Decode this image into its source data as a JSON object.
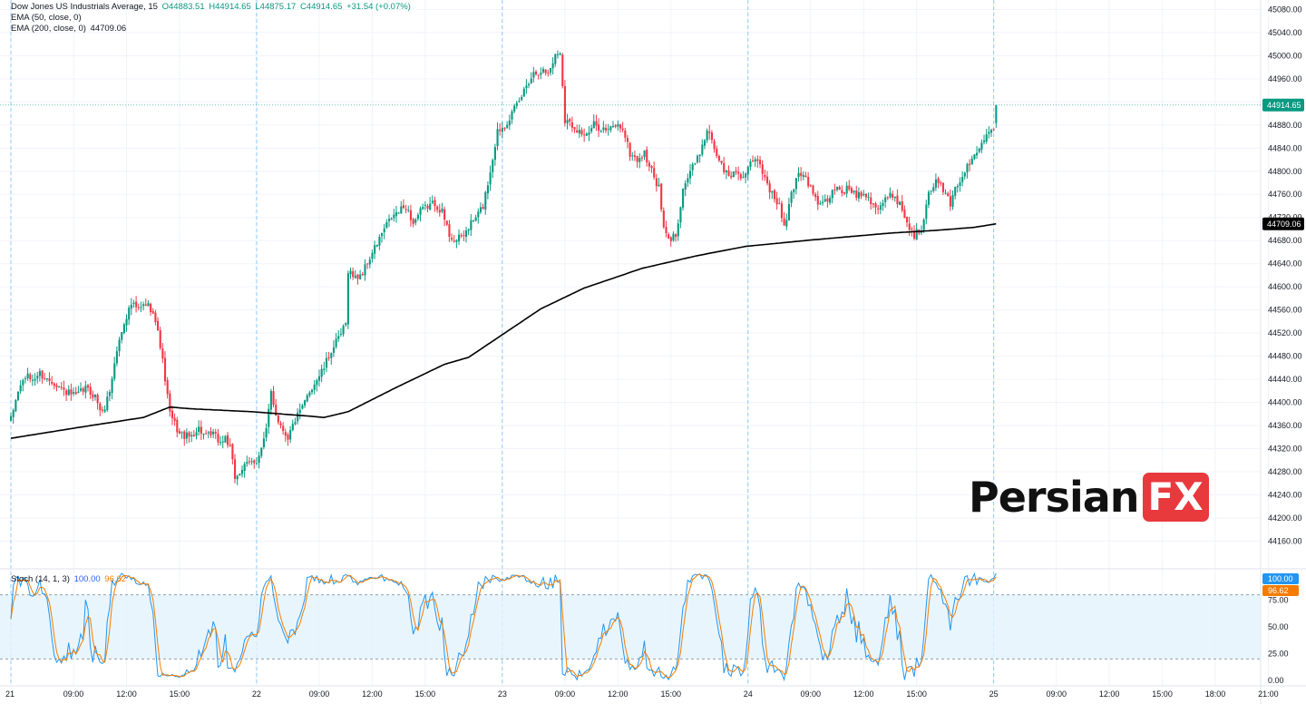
{
  "legend": {
    "main_title": "Dow Jones US Industrials Average, 15",
    "open": "O44883.51",
    "high": "H44914.65",
    "low": "L44875.17",
    "close": "C44914.65",
    "change": "+31.54 (+0.07%)",
    "ema50_label": "EMA (50, close, 0)",
    "ema50_value": "",
    "ema200_label": "EMA (200, close, 0)",
    "ema200_value": "44709.06",
    "stoch_label": "Stoch (14, 1, 3)",
    "stoch_k_value": "100.00",
    "stoch_d_value": "96.62"
  },
  "brand": {
    "text": "Persian",
    "box": "FX"
  },
  "colors": {
    "up": "#089981",
    "down": "#f23645",
    "ema200": "#000000",
    "stoch_k": "#2196f3",
    "stoch_d": "#f57c00",
    "band_fill": "#e3f2fd",
    "price_badge": "#089981",
    "ema_badge": "#000000"
  },
  "chart_data": [
    {
      "type": "candlestick",
      "title": "Dow Jones US Industrials Average, 15",
      "ylim": [
        44120,
        45090
      ],
      "y_ticks": [
        44160,
        44200,
        44240,
        44280,
        44320,
        44360,
        44400,
        44440,
        44480,
        44520,
        44560,
        44600,
        44640,
        44680,
        44720,
        44760,
        44800,
        44840,
        44880,
        44920,
        44960,
        45000,
        45040,
        45080
      ],
      "y_tick_labels": [
        "44160.00",
        "44200.00",
        "44240.00",
        "44280.00",
        "44320.00",
        "44360.00",
        "44400.00",
        "44440.00",
        "44480.00",
        "44520.00",
        "44560.00",
        "44600.00",
        "44640.00",
        "44680.00",
        "44720.00",
        "44760.00",
        "44800.00",
        "44840.00",
        "44880.00",
        "44920.00",
        "44960.00",
        "45000.00",
        "45040.00",
        "45080.00"
      ],
      "x_tick_labels": [
        "21",
        "09:00",
        "12:00",
        "15:00",
        "22",
        "09:00",
        "12:00",
        "15:00",
        "23",
        "09:00",
        "12:00",
        "15:00",
        "24",
        "09:00",
        "12:00",
        "15:00",
        "25",
        "09:00",
        "12:00",
        "15:00",
        "18:00",
        "21:00"
      ],
      "x_tick_slots": [
        0,
        26,
        48,
        70,
        102,
        128,
        150,
        172,
        204,
        230,
        252,
        274,
        306,
        332,
        354,
        376,
        408,
        434,
        456,
        478,
        500,
        522
      ],
      "day_separator_slots": [
        0,
        102,
        204,
        306,
        408
      ],
      "last_price": "44914.65",
      "ema_last": "44709.06",
      "anchors": [
        [
          0,
          44370
        ],
        [
          3,
          44420
        ],
        [
          6,
          44445
        ],
        [
          9,
          44440
        ],
        [
          12,
          44450
        ],
        [
          15,
          44440
        ],
        [
          18,
          44435
        ],
        [
          22,
          44420
        ],
        [
          27,
          44410
        ],
        [
          31,
          44425
        ],
        [
          35,
          44410
        ],
        [
          38,
          44380
        ],
        [
          41,
          44420
        ],
        [
          44,
          44490
        ],
        [
          47,
          44540
        ],
        [
          50,
          44570
        ],
        [
          53,
          44560
        ],
        [
          56,
          44570
        ],
        [
          59,
          44560
        ],
        [
          62,
          44500
        ],
        [
          64,
          44440
        ],
        [
          66,
          44380
        ],
        [
          70,
          44345
        ],
        [
          74,
          44340
        ],
        [
          78,
          44355
        ],
        [
          81,
          44340
        ],
        [
          84,
          44345
        ],
        [
          87,
          44330
        ],
        [
          89,
          44340
        ],
        [
          91,
          44320
        ],
        [
          93,
          44270
        ],
        [
          96,
          44285
        ],
        [
          99,
          44295
        ],
        [
          102,
          44300
        ],
        [
          104,
          44320
        ],
        [
          106,
          44350
        ],
        [
          108,
          44420
        ],
        [
          110,
          44380
        ],
        [
          112,
          44360
        ],
        [
          115,
          44340
        ],
        [
          118,
          44370
        ],
        [
          121,
          44390
        ],
        [
          124,
          44420
        ],
        [
          127,
          44440
        ],
        [
          130,
          44460
        ],
        [
          133,
          44490
        ],
        [
          136,
          44510
        ],
        [
          139,
          44535
        ],
        [
          140,
          44630
        ],
        [
          143,
          44615
        ],
        [
          146,
          44625
        ],
        [
          149,
          44650
        ],
        [
          152,
          44675
        ],
        [
          155,
          44700
        ],
        [
          158,
          44720
        ],
        [
          161,
          44730
        ],
        [
          164,
          44740
        ],
        [
          167,
          44710
        ],
        [
          170,
          44730
        ],
        [
          173,
          44740
        ],
        [
          176,
          44745
        ],
        [
          179,
          44730
        ],
        [
          182,
          44690
        ],
        [
          185,
          44680
        ],
        [
          188,
          44690
        ],
        [
          191,
          44710
        ],
        [
          193,
          44720
        ],
        [
          196,
          44740
        ],
        [
          199,
          44800
        ],
        [
          202,
          44870
        ],
        [
          205,
          44880
        ],
        [
          208,
          44900
        ],
        [
          211,
          44920
        ],
        [
          214,
          44950
        ],
        [
          217,
          44970
        ],
        [
          220,
          44975
        ],
        [
          223,
          44970
        ],
        [
          226,
          45000
        ],
        [
          228,
          45008
        ],
        [
          230,
          44890
        ],
        [
          233,
          44880
        ],
        [
          236,
          44870
        ],
        [
          239,
          44860
        ],
        [
          242,
          44880
        ],
        [
          245,
          44875
        ],
        [
          248,
          44870
        ],
        [
          251,
          44880
        ],
        [
          254,
          44875
        ],
        [
          257,
          44830
        ],
        [
          260,
          44820
        ],
        [
          263,
          44830
        ],
        [
          266,
          44800
        ],
        [
          269,
          44770
        ],
        [
          271,
          44700
        ],
        [
          273,
          44680
        ],
        [
          276,
          44690
        ],
        [
          279,
          44770
        ],
        [
          282,
          44800
        ],
        [
          285,
          44820
        ],
        [
          288,
          44860
        ],
        [
          290,
          44870
        ],
        [
          292,
          44840
        ],
        [
          295,
          44810
        ],
        [
          298,
          44790
        ],
        [
          301,
          44800
        ],
        [
          304,
          44790
        ],
        [
          307,
          44810
        ],
        [
          310,
          44820
        ],
        [
          313,
          44790
        ],
        [
          316,
          44760
        ],
        [
          319,
          44740
        ],
        [
          321,
          44700
        ],
        [
          324,
          44760
        ],
        [
          327,
          44800
        ],
        [
          330,
          44790
        ],
        [
          333,
          44760
        ],
        [
          336,
          44740
        ],
        [
          339,
          44750
        ],
        [
          342,
          44770
        ],
        [
          345,
          44765
        ],
        [
          348,
          44770
        ],
        [
          351,
          44760
        ],
        [
          354,
          44765
        ],
        [
          357,
          44750
        ],
        [
          360,
          44735
        ],
        [
          363,
          44750
        ],
        [
          366,
          44760
        ],
        [
          369,
          44745
        ],
        [
          372,
          44710
        ],
        [
          375,
          44690
        ],
        [
          378,
          44700
        ],
        [
          381,
          44770
        ],
        [
          384,
          44780
        ],
        [
          387,
          44770
        ],
        [
          390,
          44740
        ],
        [
          393,
          44780
        ],
        [
          396,
          44800
        ],
        [
          399,
          44820
        ],
        [
          402,
          44840
        ],
        [
          405,
          44870
        ],
        [
          408,
          44880
        ],
        [
          409,
          44915
        ]
      ],
      "ema200_anchors": [
        [
          0,
          44338
        ],
        [
          30,
          44358
        ],
        [
          55,
          44374
        ],
        [
          66,
          44392
        ],
        [
          75,
          44389
        ],
        [
          100,
          44384
        ],
        [
          125,
          44376
        ],
        [
          130,
          44374
        ],
        [
          140,
          44384
        ],
        [
          160,
          44426
        ],
        [
          180,
          44466
        ],
        [
          190,
          44478
        ],
        [
          205,
          44520
        ],
        [
          220,
          44562
        ],
        [
          238,
          44598
        ],
        [
          255,
          44622
        ],
        [
          262,
          44632
        ],
        [
          285,
          44654
        ],
        [
          305,
          44670
        ],
        [
          332,
          44681
        ],
        [
          365,
          44693
        ],
        [
          385,
          44698
        ],
        [
          400,
          44703
        ],
        [
          409,
          44709
        ]
      ]
    },
    {
      "type": "line",
      "title": "Stoch (14, 1, 3)",
      "ylim": [
        0,
        100
      ],
      "y_ticks": [
        0,
        25,
        50,
        75
      ],
      "y_tick_labels": [
        "0.00",
        "25.00",
        "50.00",
        "75.00"
      ],
      "band": [
        20,
        80
      ],
      "series": [
        {
          "name": "",
          "values": []
        },
        {
          "name": "",
          "values": []
        }
      ],
      "k_last": "100.00",
      "d_last": "96.62"
    }
  ]
}
